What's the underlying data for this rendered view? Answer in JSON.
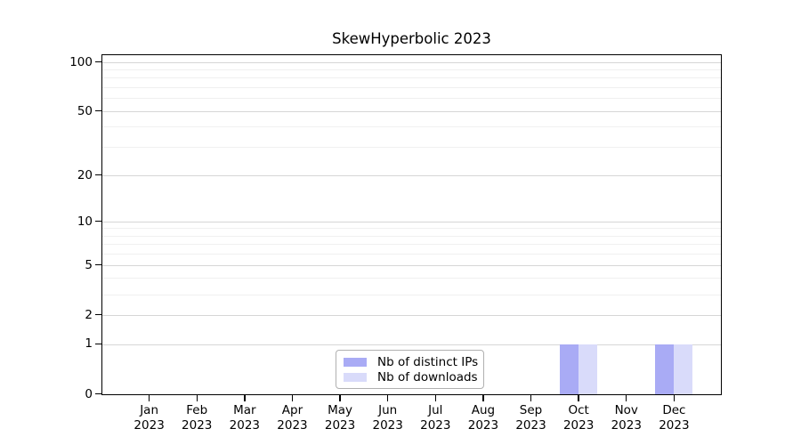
{
  "title": "SkewHyperbolic 2023",
  "chart_data": {
    "type": "bar",
    "title": "SkewHyperbolic 2023",
    "xlabel": "",
    "ylabel": "",
    "categories": [
      "Jan 2023",
      "Feb 2023",
      "Mar 2023",
      "Apr 2023",
      "May 2023",
      "Jun 2023",
      "Jul 2023",
      "Aug 2023",
      "Sep 2023",
      "Oct 2023",
      "Nov 2023",
      "Dec 2023"
    ],
    "x_tick_months": [
      "Jan",
      "Feb",
      "Mar",
      "Apr",
      "May",
      "Jun",
      "Jul",
      "Aug",
      "Sep",
      "Oct",
      "Nov",
      "Dec"
    ],
    "x_tick_year": "2023",
    "series": [
      {
        "name": "Nb of distinct IPs",
        "color": "#a9abf5",
        "values": [
          0,
          0,
          0,
          0,
          0,
          0,
          0,
          0,
          0,
          1,
          0,
          1
        ]
      },
      {
        "name": "Nb of downloads",
        "color": "#d9dbfa",
        "values": [
          0,
          0,
          0,
          0,
          0,
          0,
          0,
          0,
          0,
          1,
          0,
          1
        ]
      }
    ],
    "y_axis": {
      "scale": "log1p",
      "ticks": [
        0,
        1,
        2,
        5,
        10,
        20,
        50,
        100
      ],
      "minor_ticks": [
        3,
        4,
        6,
        7,
        8,
        9,
        30,
        40,
        60,
        70,
        80,
        90
      ],
      "range": [
        0,
        112
      ]
    },
    "grid": "horizontal, major + minor, on",
    "legend_position": "bottom-center"
  },
  "legend": {
    "items": [
      {
        "label": "Nb of distinct IPs",
        "color": "#a9abf5"
      },
      {
        "label": "Nb of downloads",
        "color": "#d9dbfa"
      }
    ]
  },
  "colors": {
    "distinct_ips": "#a9abf5",
    "downloads": "#d9dbfa",
    "grid_major": "#d6d6d6",
    "grid_minor": "#f0f0f0",
    "axis": "#000000",
    "background": "#ffffff"
  }
}
